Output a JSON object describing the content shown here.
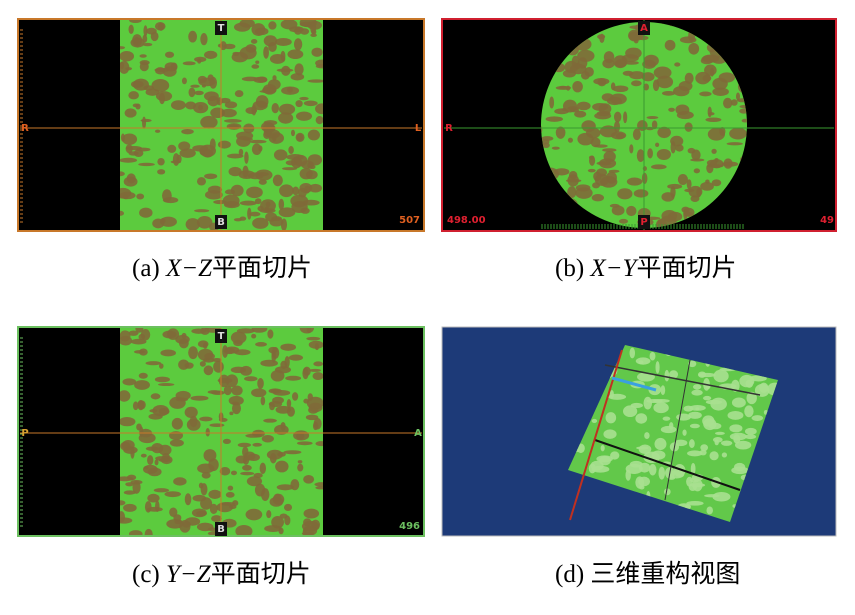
{
  "panels": [
    {
      "marks": {
        "top": "T",
        "bottom": "B",
        "left": "R",
        "right": "L",
        "corner": "507"
      },
      "caption": {
        "label": "(a)",
        "axes": "X−Z",
        "text": "平面切片"
      }
    },
    {
      "marks": {
        "top": "A",
        "bottom": "P",
        "left": "R",
        "corner_left": "498.00",
        "corner": "49"
      },
      "caption": {
        "label": "(b)",
        "axes": "X−Y",
        "text": "平面切片"
      }
    },
    {
      "marks": {
        "top": "T",
        "bottom": "B",
        "left": "P",
        "right": "A",
        "corner": "496"
      },
      "caption": {
        "label": "(c)",
        "axes": "Y−Z",
        "text": "平面切片"
      }
    },
    {
      "caption": {
        "label": "(d)",
        "text": "三维重构视图"
      }
    }
  ]
}
